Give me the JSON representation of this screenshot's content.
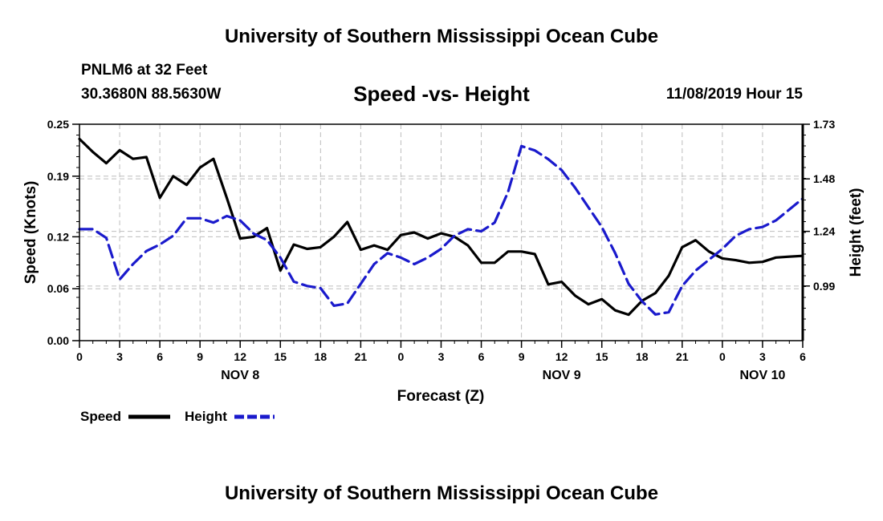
{
  "header": {
    "title": "University of Southern Mississippi Ocean Cube",
    "station": "PNLM6 at 32 Feet",
    "coords": "30.3680N 88.5630W",
    "chart_title": "Speed -vs- Height",
    "timestamp": "11/08/2019 Hour 15"
  },
  "footer": {
    "title": "University of Southern Mississippi Ocean Cube"
  },
  "legend": {
    "speed_label": "Speed",
    "height_label": "Height"
  },
  "colors": {
    "speed": "#000000",
    "height": "#1a1acc",
    "grid": "#bdbdbd"
  },
  "chart_data": {
    "type": "line",
    "title": "Speed -vs- Height",
    "xlabel": "Forecast (Z)",
    "ylabel": "Speed (Knots)",
    "y2label": "Height (feet)",
    "xlim": [
      0,
      54
    ],
    "ylim": [
      0.0,
      0.25
    ],
    "y2lim": [
      0.74,
      1.73
    ],
    "grid": true,
    "legend_position": "bottom-left",
    "x_ticks": [
      0,
      3,
      6,
      9,
      12,
      15,
      18,
      21,
      24,
      27,
      30,
      33,
      36,
      39,
      42,
      45,
      48,
      51,
      54
    ],
    "x_tick_labels": [
      "0",
      "3",
      "6",
      "9",
      "12",
      "15",
      "18",
      "21",
      "0",
      "3",
      "6",
      "9",
      "12",
      "15",
      "18",
      "21",
      "0",
      "3",
      "6"
    ],
    "date_labels": [
      {
        "x": 12,
        "label": "NOV 8"
      },
      {
        "x": 36,
        "label": "NOV 9"
      },
      {
        "x": 51,
        "label": "NOV 10"
      }
    ],
    "y_ticks": [
      0.0,
      0.06,
      0.12,
      0.19,
      0.25
    ],
    "y_tick_labels": [
      "0.00",
      "0.06",
      "0.12",
      "0.19",
      "0.25"
    ],
    "y2_ticks": [
      0.99,
      1.24,
      1.48,
      1.73
    ],
    "y2_tick_labels": [
      "0.99",
      "1.24",
      "1.48",
      "1.73"
    ],
    "series": [
      {
        "name": "Speed",
        "axis": "left",
        "style": "solid",
        "x": [
          0,
          1,
          2,
          3,
          4,
          5,
          6,
          7,
          8,
          9,
          10,
          11,
          12,
          13,
          14,
          15,
          16,
          17,
          18,
          19,
          20,
          21,
          22,
          23,
          24,
          25,
          26,
          27,
          28,
          29,
          30,
          31,
          32,
          33,
          34,
          35,
          36,
          37,
          38,
          39,
          40,
          41,
          42,
          43,
          44,
          45,
          46,
          47,
          48,
          49,
          50,
          51,
          52,
          53,
          54
        ],
        "values": [
          0.233,
          0.218,
          0.205,
          0.22,
          0.21,
          0.212,
          0.165,
          0.19,
          0.18,
          0.2,
          0.21,
          0.165,
          0.118,
          0.12,
          0.13,
          0.081,
          0.111,
          0.106,
          0.108,
          0.12,
          0.137,
          0.105,
          0.11,
          0.105,
          0.122,
          0.125,
          0.118,
          0.124,
          0.12,
          0.11,
          0.09,
          0.09,
          0.103,
          0.103,
          0.1,
          0.065,
          0.068,
          0.052,
          0.042,
          0.048,
          0.035,
          0.03,
          0.046,
          0.055,
          0.075,
          0.108,
          0.116,
          0.103,
          0.095,
          0.093,
          0.09,
          0.091,
          0.096,
          0.097,
          0.098
        ]
      },
      {
        "name": "Height",
        "axis": "right",
        "style": "dashed",
        "x": [
          0,
          1,
          2,
          3,
          4,
          5,
          6,
          7,
          8,
          9,
          10,
          11,
          12,
          13,
          14,
          15,
          16,
          17,
          18,
          19,
          20,
          21,
          22,
          23,
          24,
          25,
          26,
          27,
          28,
          29,
          30,
          31,
          32,
          33,
          34,
          35,
          36,
          37,
          38,
          39,
          40,
          41,
          42,
          43,
          44,
          45,
          46,
          47,
          48,
          49,
          50,
          51,
          52,
          53,
          54
        ],
        "values": [
          1.25,
          1.25,
          1.21,
          1.02,
          1.09,
          1.15,
          1.18,
          1.22,
          1.3,
          1.3,
          1.28,
          1.31,
          1.29,
          1.23,
          1.2,
          1.12,
          1.01,
          0.99,
          0.98,
          0.9,
          0.91,
          1.0,
          1.09,
          1.14,
          1.12,
          1.09,
          1.12,
          1.16,
          1.22,
          1.25,
          1.24,
          1.28,
          1.42,
          1.63,
          1.61,
          1.57,
          1.52,
          1.44,
          1.35,
          1.26,
          1.14,
          1.0,
          0.92,
          0.86,
          0.87,
          0.99,
          1.06,
          1.11,
          1.16,
          1.22,
          1.25,
          1.26,
          1.29,
          1.34,
          1.39
        ]
      }
    ]
  }
}
